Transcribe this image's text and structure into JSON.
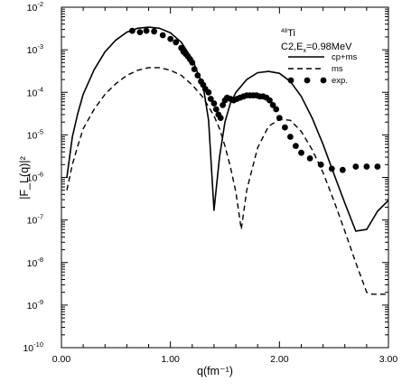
{
  "chart_data": {
    "type": "line",
    "xlabel": "q(fm⁻¹)",
    "ylabel": "|F_L(q)|²",
    "xlim": [
      0,
      3.0
    ],
    "ylim": [
      1e-10,
      0.01
    ],
    "yscale": "log",
    "grid": false,
    "legend_position": "top-right",
    "annotation": {
      "mass_number": "48",
      "nucleus": "Ti",
      "transition": "C2,E",
      "energy_subscript": "x",
      "energy": "=0.98MeV"
    },
    "x_ticks": [
      {
        "value": 0.0,
        "label": "0.00"
      },
      {
        "value": 1.0,
        "label": "1.00"
      },
      {
        "value": 2.0,
        "label": "2.00"
      },
      {
        "value": 3.0,
        "label": "3.00"
      }
    ],
    "y_ticks": [
      {
        "exp": -10,
        "base": "10",
        "sup": "-10"
      },
      {
        "exp": -9,
        "base": "10",
        "sup": "-9"
      },
      {
        "exp": -8,
        "base": "10",
        "sup": "-8"
      },
      {
        "exp": -7,
        "base": "10",
        "sup": "-7"
      },
      {
        "exp": -6,
        "base": "10",
        "sup": "-6"
      },
      {
        "exp": -5,
        "base": "10",
        "sup": "-5"
      },
      {
        "exp": -4,
        "base": "10",
        "sup": "-4"
      },
      {
        "exp": -3,
        "base": "10",
        "sup": "-3"
      },
      {
        "exp": -2,
        "base": "10",
        "sup": "-2"
      }
    ],
    "series": [
      {
        "name": "cp+ms",
        "style": "solid",
        "color": "#000000",
        "x": [
          0.05,
          0.1,
          0.15,
          0.2,
          0.3,
          0.4,
          0.5,
          0.6,
          0.7,
          0.8,
          0.9,
          1.0,
          1.1,
          1.2,
          1.3,
          1.35,
          1.4,
          1.45,
          1.5,
          1.55,
          1.6,
          1.7,
          1.8,
          1.9,
          2.0,
          2.1,
          2.2,
          2.3,
          2.4,
          2.5,
          2.6,
          2.7,
          2.8,
          2.9,
          3.0
        ],
        "y": [
          1e-06,
          9e-06,
          3.2e-05,
          9e-05,
          0.00034,
          0.0009,
          0.0017,
          0.0026,
          0.0032,
          0.0034,
          0.0032,
          0.0025,
          0.0015,
          0.0006,
          0.00014,
          2.2e-05,
          1.7e-07,
          3e-06,
          2e-05,
          5.5e-05,
          0.0001,
          0.0002,
          0.00029,
          0.00031,
          0.00028,
          0.00018,
          8e-05,
          2.5e-05,
          6e-06,
          1.2e-06,
          2.5e-07,
          5.5e-08,
          6e-08,
          1.6e-07,
          2.9e-07
        ]
      },
      {
        "name": "ms",
        "style": "dashed",
        "color": "#000000",
        "x": [
          0.05,
          0.1,
          0.15,
          0.2,
          0.3,
          0.4,
          0.5,
          0.6,
          0.7,
          0.8,
          0.9,
          1.0,
          1.1,
          1.2,
          1.3,
          1.4,
          1.45,
          1.5,
          1.55,
          1.6,
          1.65,
          1.7,
          1.75,
          1.8,
          1.9,
          2.0,
          2.1,
          2.2,
          2.3,
          2.4,
          2.5,
          2.6,
          2.7,
          2.8,
          2.85,
          2.9,
          3.0
        ],
        "y": [
          5e-07,
          2e-06,
          5.5e-06,
          1.4e-05,
          4e-05,
          9e-05,
          0.00016,
          0.00025,
          0.00033,
          0.00038,
          0.00038,
          0.00033,
          0.00025,
          0.00015,
          7.5e-05,
          2.8e-05,
          1.4e-05,
          5.5e-06,
          1.8e-06,
          4.5e-07,
          6e-08,
          5e-07,
          1.6e-06,
          5e-06,
          1.6e-05,
          2.3e-05,
          2.2e-05,
          1.2e-05,
          4.5e-06,
          1.3e-06,
          2.8e-07,
          5.5e-08,
          1e-08,
          2e-09,
          1.8e-09,
          1.8e-09,
          1.8e-09
        ]
      },
      {
        "name": "exp.",
        "style": "markers",
        "color": "#000000",
        "x": [
          0.65,
          0.72,
          0.78,
          0.85,
          0.93,
          1.0,
          1.05,
          1.1,
          1.12,
          1.14,
          1.16,
          1.18,
          1.2,
          1.22,
          1.25,
          1.28,
          1.3,
          1.32,
          1.35,
          1.37,
          1.4,
          1.42,
          1.44,
          1.46,
          1.48,
          1.5,
          1.52,
          1.55,
          1.58,
          1.61,
          1.64,
          1.67,
          1.7,
          1.73,
          1.76,
          1.79,
          1.82,
          1.85,
          1.88,
          1.91,
          1.94,
          1.97,
          2.0,
          2.05,
          2.1,
          2.15,
          2.2,
          2.28,
          2.38,
          2.48,
          2.58,
          2.7,
          2.8,
          2.9
        ],
        "y": [
          0.0028,
          0.0026,
          0.0028,
          0.0027,
          0.0022,
          0.0018,
          0.0015,
          0.0011,
          0.0009,
          0.0008,
          0.0007,
          0.0006,
          0.0005,
          0.00035,
          0.00025,
          0.00018,
          0.00015,
          0.00012,
          0.0001,
          7e-05,
          5.5e-05,
          4e-05,
          3e-05,
          2.5e-05,
          5e-05,
          6.5e-05,
          7.5e-05,
          7e-05,
          6.5e-05,
          7e-05,
          7.5e-05,
          8e-05,
          8.5e-05,
          8.5e-05,
          8.5e-05,
          8.5e-05,
          8e-05,
          8e-05,
          7.5e-05,
          6.5e-05,
          5e-05,
          4e-05,
          2.5e-05,
          1.5e-05,
          9e-06,
          5.5e-06,
          3.8e-06,
          2.8e-06,
          2e-06,
          1.6e-06,
          1.5e-06,
          1.8e-06,
          1.8e-06,
          1.8e-06
        ]
      }
    ]
  }
}
